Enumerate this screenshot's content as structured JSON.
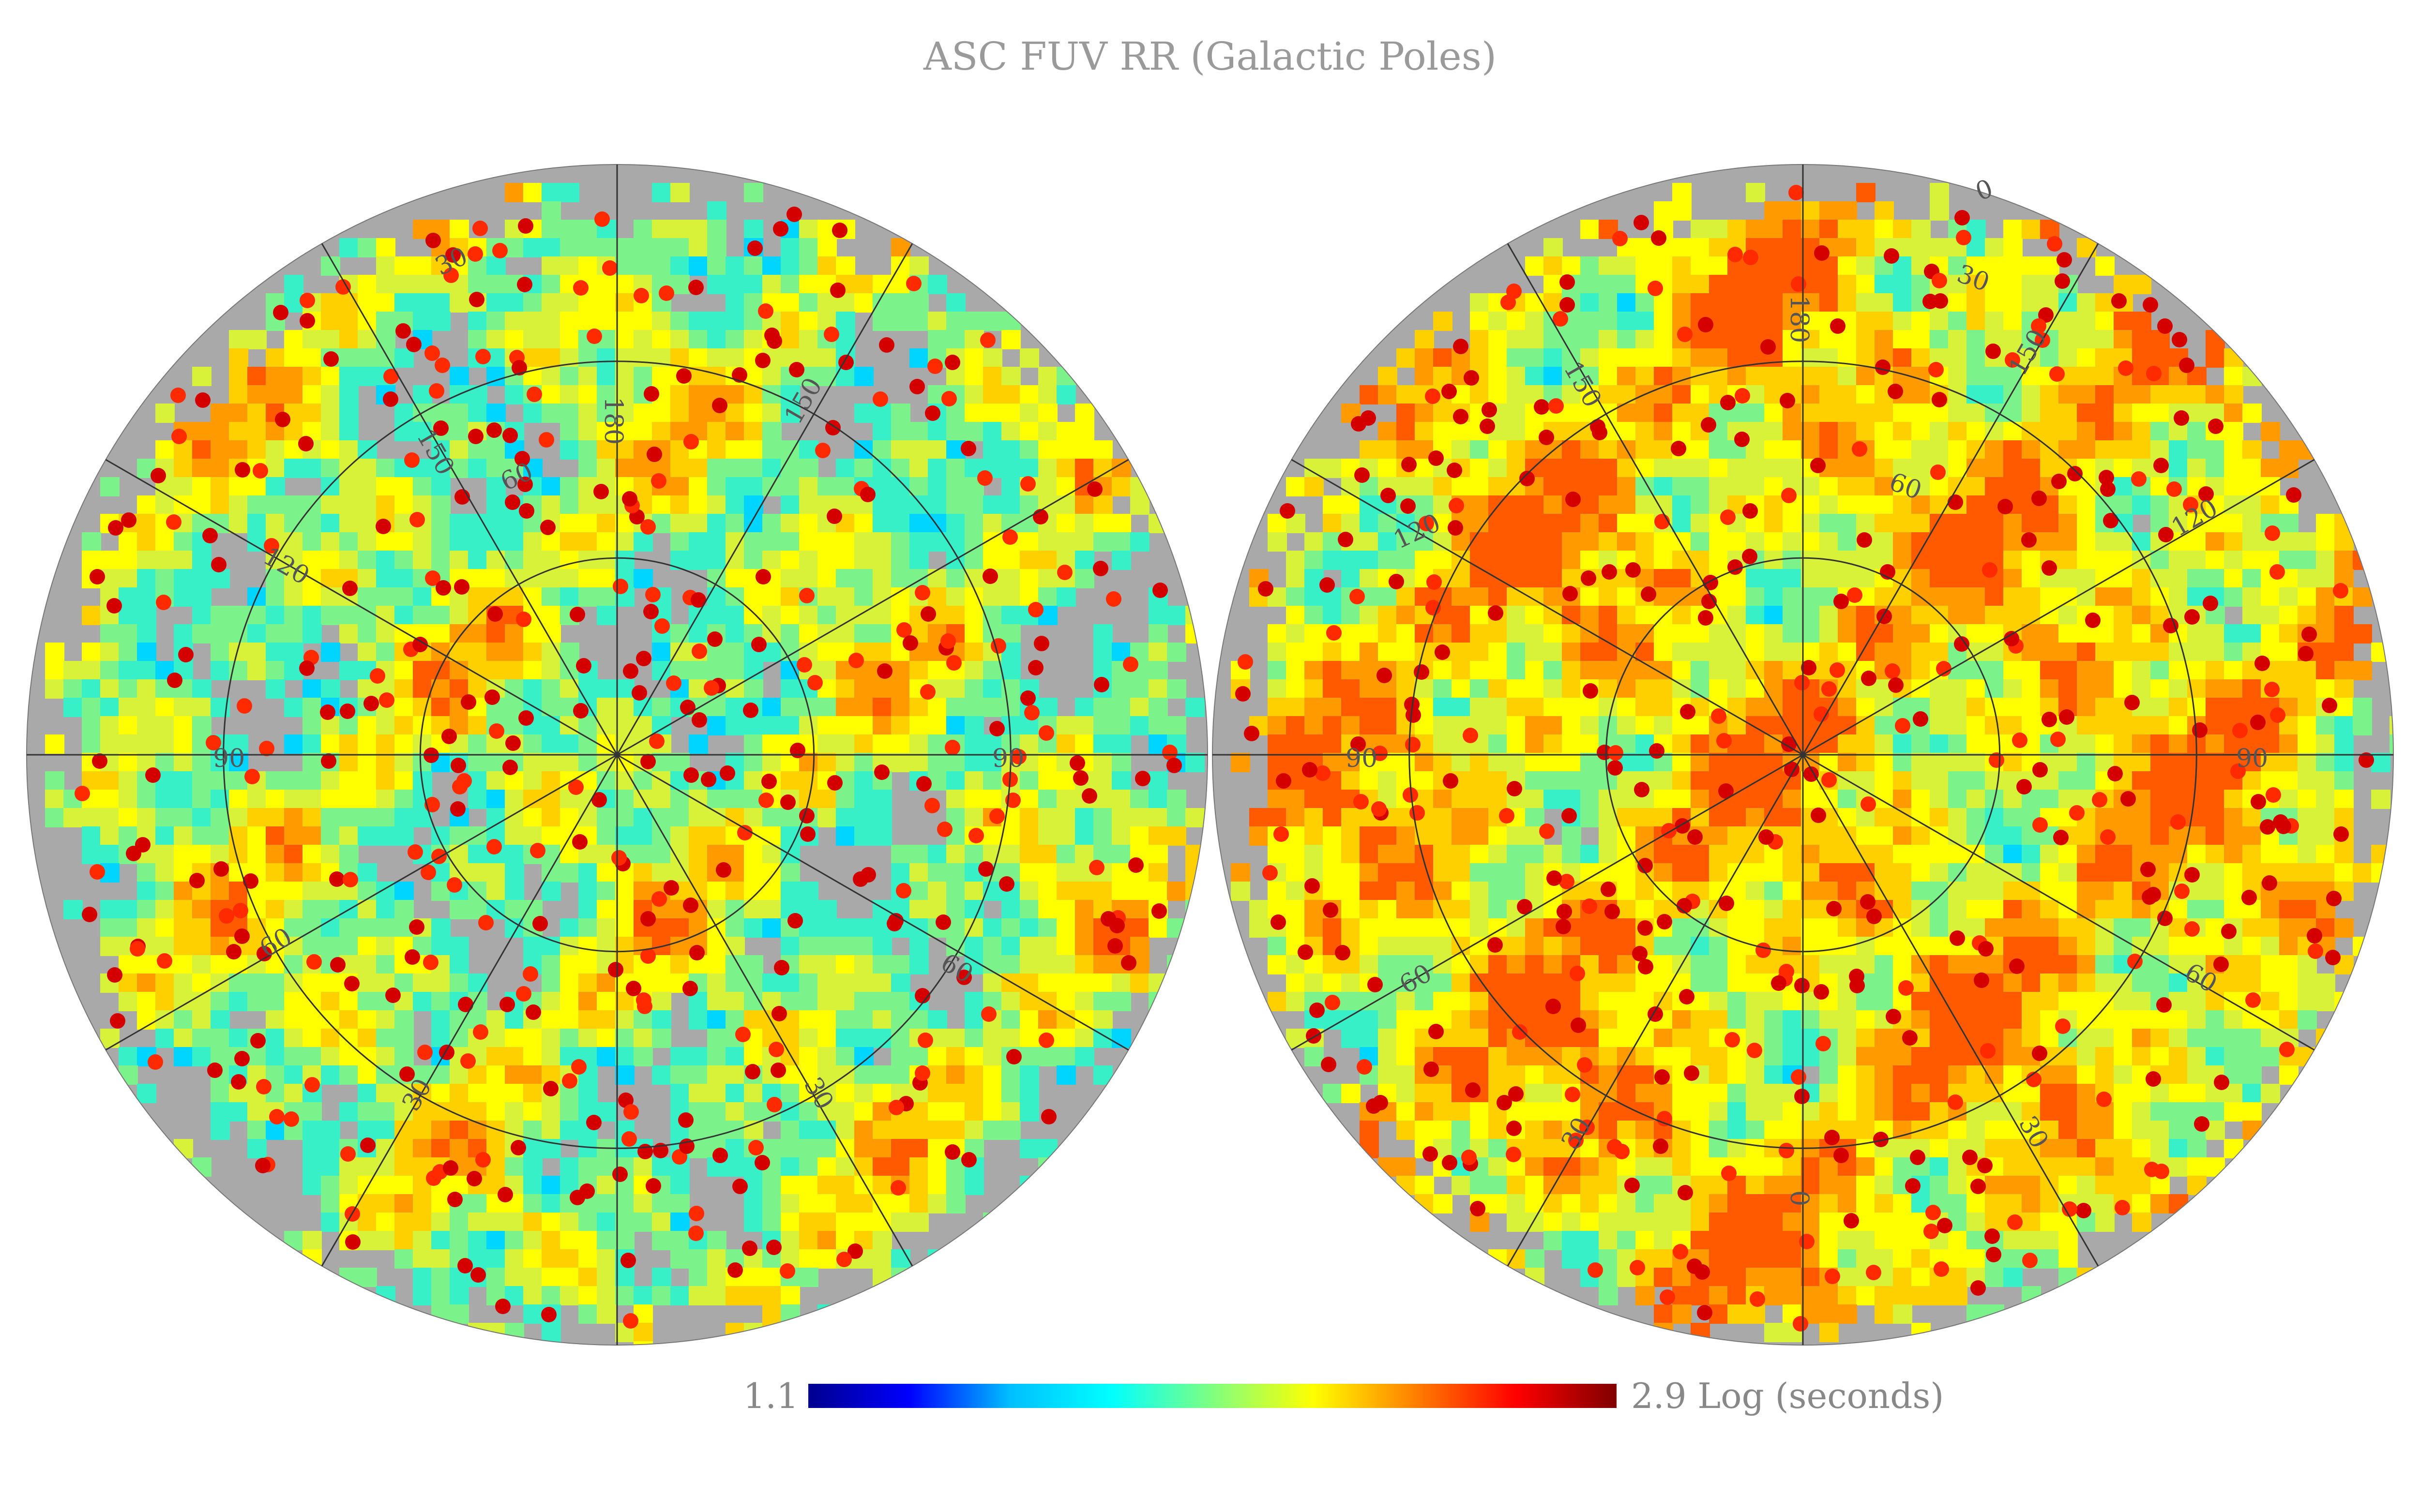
{
  "title": "ASC FUV RR (Galactic Poles)",
  "colorbar": {
    "min_label": "1.1",
    "max_label": "2.9",
    "unit_label": "Log (seconds)",
    "min": 1.1,
    "max": 2.9,
    "colormap": "jet",
    "stops": [
      "#00008f",
      "#0000ff",
      "#00bfff",
      "#00ffff",
      "#80ff80",
      "#ffff00",
      "#ff8000",
      "#ff0000",
      "#800000"
    ]
  },
  "hemispheres": [
    {
      "name": "north",
      "longitude_labels": [
        "180",
        "150",
        "120",
        "90",
        "60",
        "30",
        "150",
        "90",
        "60",
        "30"
      ],
      "latitude_labels": [
        "30",
        "60"
      ]
    },
    {
      "name": "south",
      "longitude_labels": [
        "0",
        "180",
        "150",
        "120",
        "90",
        "60",
        "30",
        "150",
        "120",
        "90",
        "60",
        "30",
        "0"
      ],
      "latitude_labels": [
        "30",
        "60"
      ]
    }
  ],
  "colors": {
    "no_data": "#a9a9a9",
    "grid": "#333333"
  }
}
